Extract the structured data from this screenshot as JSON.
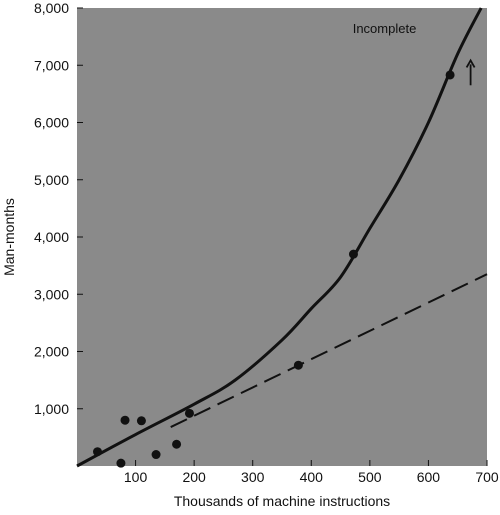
{
  "chart_data": {
    "type": "scatter",
    "xlabel": "Thousands of machine instructions",
    "ylabel": "Man-months",
    "xlim": [
      0,
      700
    ],
    "ylim": [
      0,
      8000
    ],
    "xticks": [
      "100",
      "200",
      "300",
      "400",
      "500",
      "600",
      "700"
    ],
    "yticks": [
      "1,000",
      "2,000",
      "3,000",
      "4,000",
      "5,000",
      "6,000",
      "7,000",
      "8,000"
    ],
    "grid": false,
    "legend": "none",
    "annotation": {
      "text": "Incomplete",
      "arrow": "up"
    },
    "colors": {
      "plot_background": "#8a8a8a",
      "marks": "#111111"
    },
    "points": [
      {
        "x": 35,
        "y": 250
      },
      {
        "x": 75,
        "y": 50
      },
      {
        "x": 82,
        "y": 800
      },
      {
        "x": 110,
        "y": 790
      },
      {
        "x": 135,
        "y": 200
      },
      {
        "x": 170,
        "y": 380
      },
      {
        "x": 192,
        "y": 920
      },
      {
        "x": 378,
        "y": 1760
      },
      {
        "x": 472,
        "y": 3700
      },
      {
        "x": 637,
        "y": 6830
      }
    ],
    "series": [
      {
        "style": "solid",
        "x": [
          0,
          100,
          200,
          270,
          350,
          400,
          450,
          500,
          550,
          600,
          650,
          690
        ],
        "y": [
          0,
          550,
          1080,
          1500,
          2200,
          2750,
          3300,
          4150,
          5000,
          6000,
          7200,
          8000
        ]
      },
      {
        "style": "dashed",
        "x": [
          160,
          700
        ],
        "y": [
          680,
          3350
        ]
      }
    ]
  }
}
